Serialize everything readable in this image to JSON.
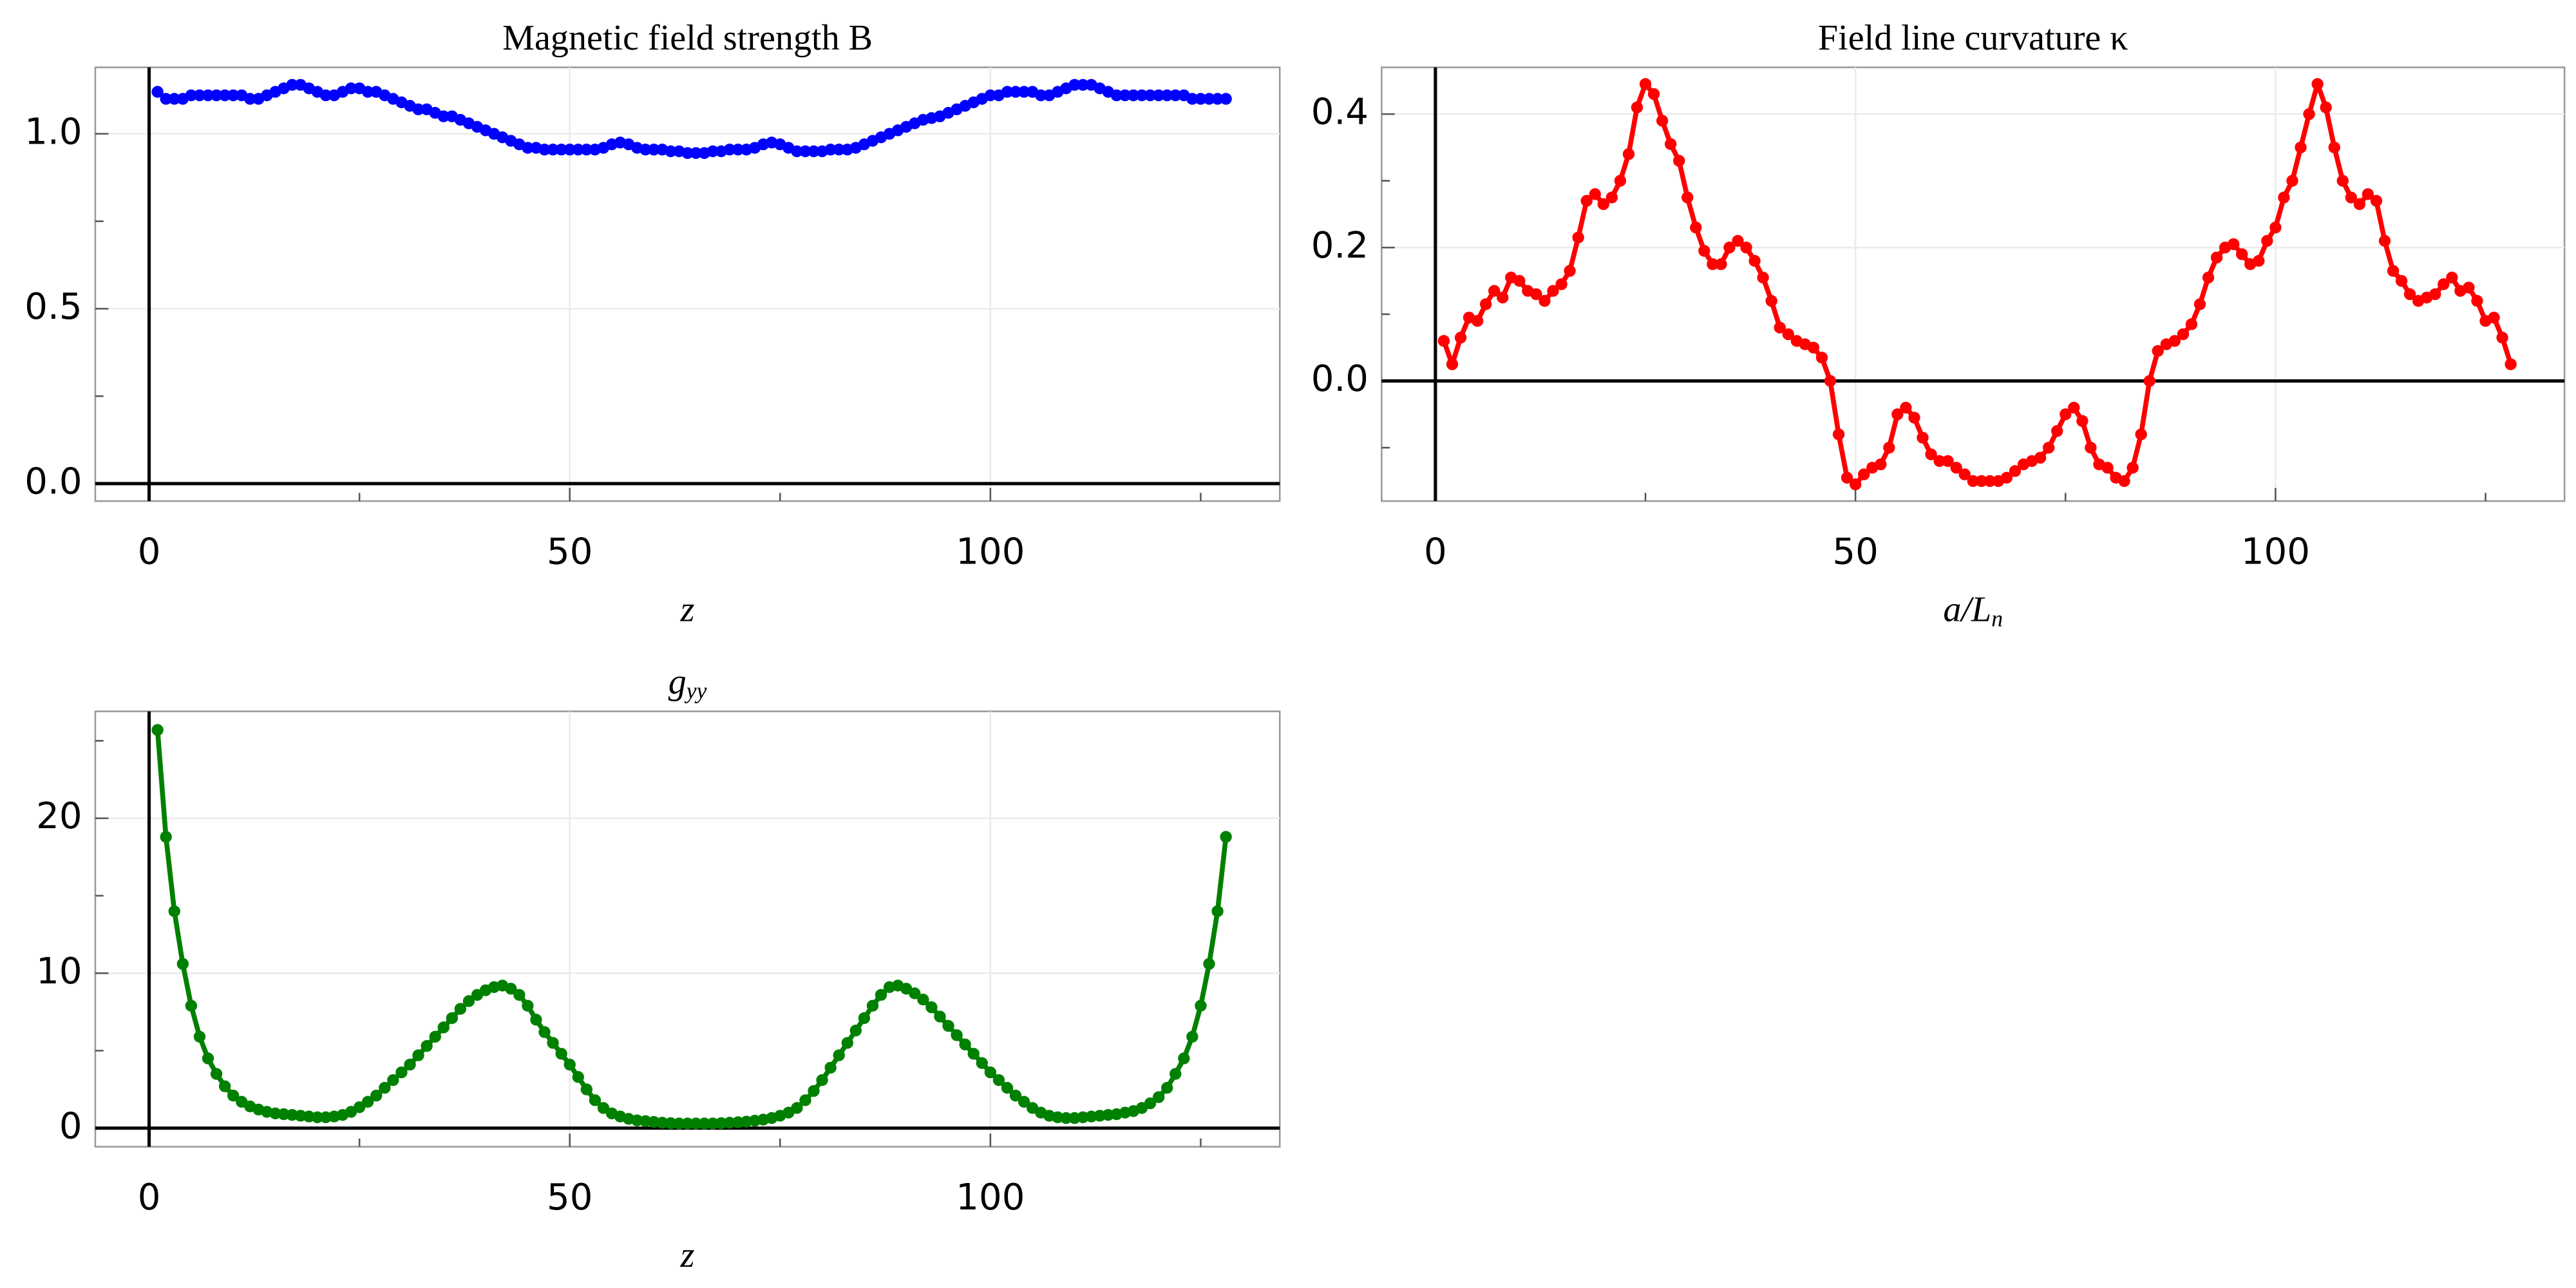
{
  "chart_data": [
    {
      "type": "line",
      "title": "Magnetic field strength B",
      "xlabel": "z",
      "color": "#0000ff",
      "grid": true,
      "xlim": [
        -6.4,
        134.4
      ],
      "xticks": [
        0,
        50,
        100
      ],
      "xminor": [
        25,
        75,
        125
      ],
      "ylim": [
        -0.05,
        1.19
      ],
      "yticks": [
        {
          "value": 0,
          "label": "0.0"
        },
        0.5,
        {
          "value": 1,
          "label": "1.0"
        }
      ],
      "yminor": [
        0.25,
        0.75
      ],
      "x": [
        1,
        2,
        3,
        4,
        5,
        6,
        7,
        8,
        9,
        10,
        11,
        12,
        13,
        14,
        15,
        16,
        17,
        18,
        19,
        20,
        21,
        22,
        23,
        24,
        25,
        26,
        27,
        28,
        29,
        30,
        31,
        32,
        33,
        34,
        35,
        36,
        37,
        38,
        39,
        40,
        41,
        42,
        43,
        44,
        45,
        46,
        47,
        48,
        49,
        50,
        51,
        52,
        53,
        54,
        55,
        56,
        57,
        58,
        59,
        60,
        61,
        62,
        63,
        64,
        65,
        66,
        67,
        68,
        69,
        70,
        71,
        72,
        73,
        74,
        75,
        76,
        77,
        78,
        79,
        80,
        81,
        82,
        83,
        84,
        85,
        86,
        87,
        88,
        89,
        90,
        91,
        92,
        93,
        94,
        95,
        96,
        97,
        98,
        99,
        100,
        101,
        102,
        103,
        104,
        105,
        106,
        107,
        108,
        109,
        110,
        111,
        112,
        113,
        114,
        115,
        116,
        117,
        118,
        119,
        120,
        121,
        122,
        123,
        124,
        125,
        126,
        127,
        128
      ],
      "values": [
        1.12,
        1.1,
        1.1,
        1.1,
        1.11,
        1.11,
        1.11,
        1.11,
        1.11,
        1.11,
        1.11,
        1.1,
        1.1,
        1.11,
        1.12,
        1.13,
        1.14,
        1.14,
        1.13,
        1.12,
        1.11,
        1.11,
        1.12,
        1.13,
        1.13,
        1.12,
        1.12,
        1.11,
        1.1,
        1.09,
        1.08,
        1.07,
        1.07,
        1.06,
        1.05,
        1.05,
        1.04,
        1.03,
        1.02,
        1.01,
        1.0,
        0.99,
        0.98,
        0.97,
        0.96,
        0.96,
        0.955,
        0.955,
        0.955,
        0.955,
        0.955,
        0.955,
        0.955,
        0.96,
        0.97,
        0.975,
        0.97,
        0.96,
        0.955,
        0.955,
        0.955,
        0.95,
        0.95,
        0.945,
        0.945,
        0.945,
        0.95,
        0.95,
        0.955,
        0.955,
        0.955,
        0.96,
        0.97,
        0.975,
        0.97,
        0.96,
        0.95,
        0.95,
        0.95,
        0.95,
        0.955,
        0.955,
        0.955,
        0.96,
        0.97,
        0.98,
        0.99,
        1.0,
        1.01,
        1.02,
        1.03,
        1.04,
        1.045,
        1.05,
        1.06,
        1.07,
        1.08,
        1.09,
        1.1,
        1.11,
        1.11,
        1.12,
        1.12,
        1.12,
        1.12,
        1.11,
        1.11,
        1.12,
        1.13,
        1.14,
        1.14,
        1.14,
        1.13,
        1.12,
        1.11,
        1.11,
        1.11,
        1.11,
        1.11,
        1.11,
        1.11,
        1.11,
        1.11,
        1.1,
        1.1,
        1.1,
        1.1,
        1.1
      ]
    },
    {
      "type": "line",
      "title": "Field line curvature κ",
      "xlabel": "a/L",
      "xlabel_sub": "n",
      "color": "#ff0000",
      "grid": true,
      "xlim": [
        -6.4,
        134.4
      ],
      "xticks": [
        0,
        50,
        100
      ],
      "xminor": [
        25,
        75,
        125
      ],
      "ylim": [
        -0.18,
        0.47
      ],
      "yticks": [
        {
          "value": 0,
          "label": "0.0"
        },
        0.2,
        0.4
      ],
      "yminor": [
        -0.1,
        0.1,
        0.3
      ],
      "x": [
        1,
        2,
        3,
        4,
        5,
        6,
        7,
        8,
        9,
        10,
        11,
        12,
        13,
        14,
        15,
        16,
        17,
        18,
        19,
        20,
        21,
        22,
        23,
        24,
        25,
        26,
        27,
        28,
        29,
        30,
        31,
        32,
        33,
        34,
        35,
        36,
        37,
        38,
        39,
        40,
        41,
        42,
        43,
        44,
        45,
        46,
        47,
        48,
        49,
        50,
        51,
        52,
        53,
        54,
        55,
        56,
        57,
        58,
        59,
        60,
        61,
        62,
        63,
        64,
        65,
        66,
        67,
        68,
        69,
        70,
        71,
        72,
        73,
        74,
        75,
        76,
        77,
        78,
        79,
        80,
        81,
        82,
        83,
        84,
        85,
        86,
        87,
        88,
        89,
        90,
        91,
        92,
        93,
        94,
        95,
        96,
        97,
        98,
        99,
        100,
        101,
        102,
        103,
        104,
        105,
        106,
        107,
        108,
        109,
        110,
        111,
        112,
        113,
        114,
        115,
        116,
        117,
        118,
        119,
        120,
        121,
        122,
        123,
        124,
        125,
        126,
        127,
        128
      ],
      "values": [
        0.06,
        0.025,
        0.065,
        0.095,
        0.09,
        0.115,
        0.135,
        0.125,
        0.155,
        0.15,
        0.135,
        0.13,
        0.12,
        0.135,
        0.145,
        0.165,
        0.215,
        0.27,
        0.28,
        0.265,
        0.275,
        0.3,
        0.34,
        0.41,
        0.445,
        0.43,
        0.39,
        0.355,
        0.33,
        0.275,
        0.23,
        0.195,
        0.175,
        0.175,
        0.2,
        0.21,
        0.2,
        0.18,
        0.155,
        0.12,
        0.08,
        0.07,
        0.06,
        0.055,
        0.05,
        0.035,
        0.0,
        -0.08,
        -0.145,
        -0.155,
        -0.14,
        -0.13,
        -0.125,
        -0.1,
        -0.05,
        -0.04,
        -0.055,
        -0.085,
        -0.11,
        -0.12,
        -0.12,
        -0.13,
        -0.14,
        -0.15,
        -0.15,
        -0.15,
        -0.15,
        -0.145,
        -0.135,
        -0.125,
        -0.12,
        -0.115,
        -0.1,
        -0.075,
        -0.05,
        -0.04,
        -0.06,
        -0.1,
        -0.125,
        -0.13,
        -0.145,
        -0.15,
        -0.13,
        -0.08,
        0.0,
        0.045,
        0.055,
        0.06,
        0.07,
        0.085,
        0.115,
        0.155,
        0.185,
        0.2,
        0.205,
        0.19,
        0.175,
        0.18,
        0.21,
        0.23,
        0.275,
        0.3,
        0.35,
        0.4,
        0.445,
        0.41,
        0.35,
        0.3,
        0.275,
        0.265,
        0.28,
        0.27,
        0.21,
        0.165,
        0.15,
        0.13,
        0.12,
        0.125,
        0.13,
        0.145,
        0.155,
        0.135,
        0.14,
        0.12,
        0.09,
        0.095,
        0.065,
        0.025
      ]
    },
    {
      "type": "line",
      "title": "g",
      "title_sub": "yy",
      "xlabel": "z",
      "color": "#008000",
      "grid": true,
      "xlim": [
        -6.4,
        134.4
      ],
      "xticks": [
        0,
        50,
        100
      ],
      "xminor": [
        25,
        75,
        125
      ],
      "ylim": [
        -1.2,
        26.9
      ],
      "yticks": [
        0,
        10,
        20
      ],
      "yminor": [
        5,
        15,
        25
      ],
      "x": [
        1,
        2,
        3,
        4,
        5,
        6,
        7,
        8,
        9,
        10,
        11,
        12,
        13,
        14,
        15,
        16,
        17,
        18,
        19,
        20,
        21,
        22,
        23,
        24,
        25,
        26,
        27,
        28,
        29,
        30,
        31,
        32,
        33,
        34,
        35,
        36,
        37,
        38,
        39,
        40,
        41,
        42,
        43,
        44,
        45,
        46,
        47,
        48,
        49,
        50,
        51,
        52,
        53,
        54,
        55,
        56,
        57,
        58,
        59,
        60,
        61,
        62,
        63,
        64,
        65,
        66,
        67,
        68,
        69,
        70,
        71,
        72,
        73,
        74,
        75,
        76,
        77,
        78,
        79,
        80,
        81,
        82,
        83,
        84,
        85,
        86,
        87,
        88,
        89,
        90,
        91,
        92,
        93,
        94,
        95,
        96,
        97,
        98,
        99,
        100,
        101,
        102,
        103,
        104,
        105,
        106,
        107,
        108,
        109,
        110,
        111,
        112,
        113,
        114,
        115,
        116,
        117,
        118,
        119,
        120,
        121,
        122,
        123,
        124,
        125,
        126,
        127,
        128
      ],
      "values": [
        25.7,
        18.8,
        14.0,
        10.6,
        7.9,
        5.9,
        4.5,
        3.5,
        2.7,
        2.1,
        1.7,
        1.4,
        1.2,
        1.05,
        0.95,
        0.9,
        0.85,
        0.8,
        0.75,
        0.7,
        0.7,
        0.75,
        0.85,
        1.05,
        1.35,
        1.7,
        2.1,
        2.6,
        3.1,
        3.6,
        4.1,
        4.7,
        5.3,
        5.9,
        6.5,
        7.1,
        7.7,
        8.2,
        8.6,
        8.9,
        9.1,
        9.2,
        9.0,
        8.6,
        7.9,
        7.0,
        6.2,
        5.5,
        4.8,
        4.1,
        3.3,
        2.5,
        1.8,
        1.3,
        0.95,
        0.75,
        0.6,
        0.5,
        0.45,
        0.4,
        0.35,
        0.32,
        0.3,
        0.3,
        0.3,
        0.3,
        0.3,
        0.32,
        0.35,
        0.38,
        0.42,
        0.48,
        0.55,
        0.65,
        0.8,
        1.0,
        1.3,
        1.8,
        2.4,
        3.1,
        3.9,
        4.7,
        5.5,
        6.3,
        7.1,
        7.9,
        8.6,
        9.1,
        9.2,
        9.0,
        8.7,
        8.3,
        7.8,
        7.2,
        6.6,
        6.0,
        5.4,
        4.8,
        4.2,
        3.6,
        3.1,
        2.6,
        2.1,
        1.7,
        1.3,
        1.0,
        0.8,
        0.7,
        0.65,
        0.65,
        0.7,
        0.75,
        0.8,
        0.85,
        0.9,
        1.0,
        1.1,
        1.3,
        1.6,
        2.0,
        2.6,
        3.5,
        4.5,
        5.9,
        7.9,
        10.6,
        14.0,
        18.8
      ]
    }
  ]
}
